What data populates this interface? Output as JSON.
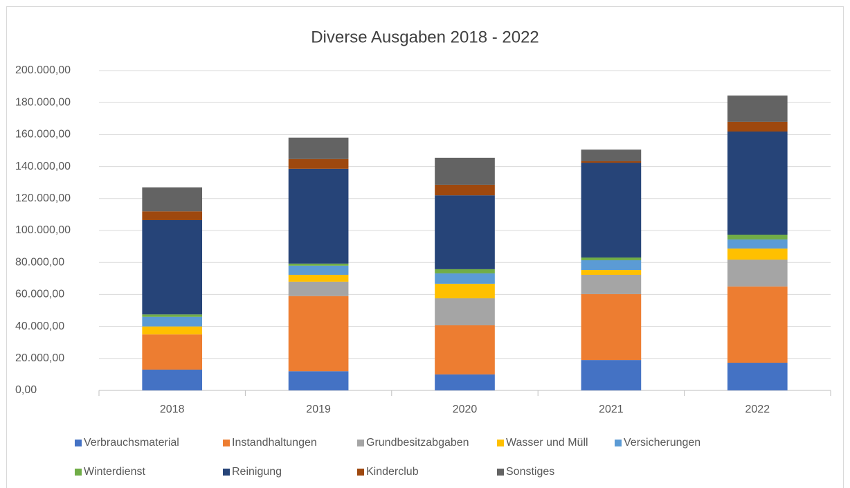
{
  "chart_data": {
    "type": "bar",
    "stacked": true,
    "title": "Diverse Ausgaben 2018 - 2022",
    "categories": [
      "2018",
      "2019",
      "2020",
      "2021",
      "2022"
    ],
    "series": [
      {
        "name": "Verbrauchsmaterial",
        "color": "#4472c4",
        "values": [
          13000,
          12000,
          10000,
          19000,
          17300
        ]
      },
      {
        "name": "Instandhaltungen",
        "color": "#ed7d31",
        "values": [
          22000,
          47000,
          30700,
          41200,
          47700
        ]
      },
      {
        "name": "Grundbesitzabgaben",
        "color": "#a5a5a5",
        "values": [
          0,
          9000,
          16900,
          12100,
          16800
        ]
      },
      {
        "name": "Wasser und Müll",
        "color": "#ffc000",
        "values": [
          5000,
          4300,
          9100,
          3000,
          6900
        ]
      },
      {
        "name": "Versicherungen",
        "color": "#5b9bd5",
        "values": [
          6000,
          5700,
          6500,
          6100,
          5700
        ]
      },
      {
        "name": "Winterdienst",
        "color": "#70ad47",
        "values": [
          1500,
          1300,
          2600,
          1700,
          3000
        ]
      },
      {
        "name": "Reinigung",
        "color": "#264478",
        "values": [
          59000,
          59300,
          46200,
          59300,
          64500
        ]
      },
      {
        "name": "Kinderclub",
        "color": "#9e480e",
        "values": [
          5500,
          6100,
          6600,
          900,
          6100
        ]
      },
      {
        "name": "Sonstiges",
        "color": "#636363",
        "values": [
          15000,
          13400,
          16900,
          7300,
          16400
        ]
      }
    ],
    "ylim": [
      0,
      200000
    ],
    "yticks": [
      {
        "value": 0,
        "label": "0,00"
      },
      {
        "value": 20000,
        "label": "20.000,00"
      },
      {
        "value": 40000,
        "label": "40.000,00"
      },
      {
        "value": 60000,
        "label": "60.000,00"
      },
      {
        "value": 80000,
        "label": "80.000,00"
      },
      {
        "value": 100000,
        "label": "100.000,00"
      },
      {
        "value": 120000,
        "label": "120.000,00"
      },
      {
        "value": 140000,
        "label": "140.000,00"
      },
      {
        "value": 160000,
        "label": "160.000,00"
      },
      {
        "value": 180000,
        "label": "180.000,00"
      },
      {
        "value": 200000,
        "label": "200.000,00"
      }
    ],
    "grid": true,
    "legend": "bottom"
  }
}
